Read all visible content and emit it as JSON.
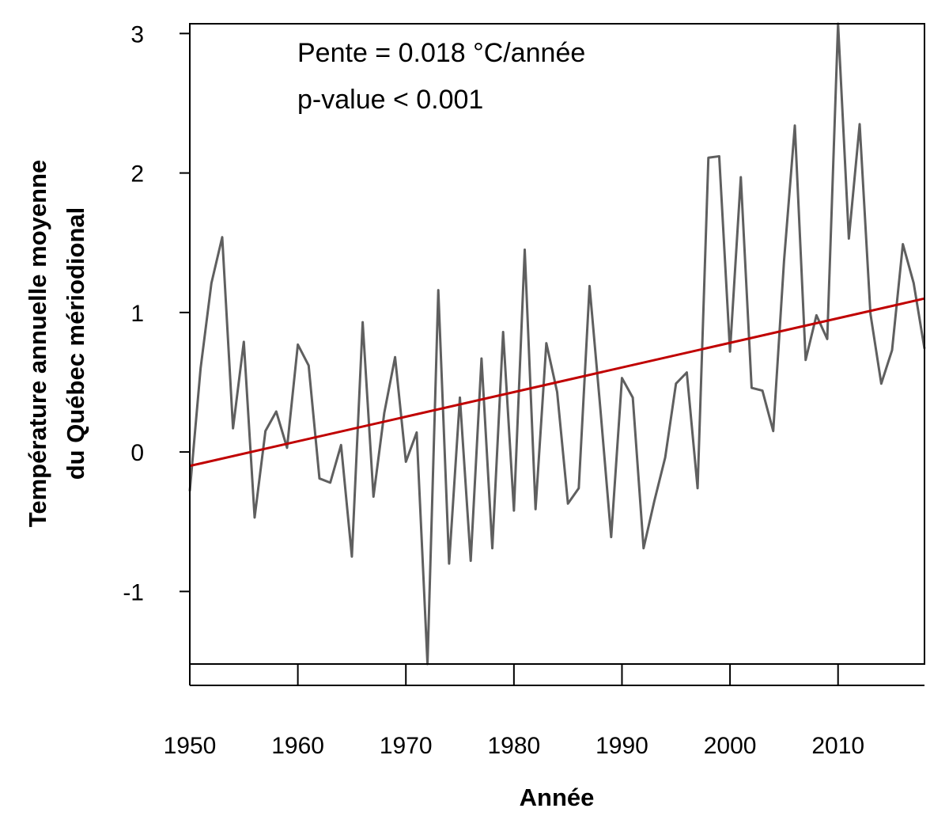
{
  "chart_data": {
    "type": "line",
    "xlabel": "Année",
    "ylabel_lines": [
      "Température annuelle moyenne",
      "du Québec mériodional"
    ],
    "annotations": [
      "Pente = 0.018 °C/année",
      "p-value < 0.001"
    ],
    "xlim": [
      1950,
      2018
    ],
    "ylim": [
      -1.52,
      3.07
    ],
    "x_ticks": [
      1950,
      1960,
      1970,
      1980,
      1990,
      2000,
      2010
    ],
    "y_ticks": [
      -1,
      0,
      1,
      2,
      3
    ],
    "grid": false,
    "series": [
      {
        "color": "#5f5f5f",
        "x": [
          1950,
          1951,
          1952,
          1953,
          1954,
          1955,
          1956,
          1957,
          1958,
          1959,
          1960,
          1961,
          1962,
          1963,
          1964,
          1965,
          1966,
          1967,
          1968,
          1969,
          1970,
          1971,
          1972,
          1973,
          1974,
          1975,
          1976,
          1977,
          1978,
          1979,
          1980,
          1981,
          1982,
          1983,
          1984,
          1985,
          1986,
          1987,
          1988,
          1989,
          1990,
          1991,
          1992,
          1993,
          1994,
          1995,
          1996,
          1997,
          1998,
          1999,
          2000,
          2001,
          2002,
          2003,
          2004,
          2005,
          2006,
          2007,
          2008,
          2009,
          2010,
          2011,
          2012,
          2013,
          2014,
          2015,
          2016,
          2017,
          2018
        ],
        "y": [
          -0.28,
          0.6,
          1.21,
          1.54,
          0.17,
          0.79,
          -0.47,
          0.15,
          0.29,
          0.03,
          0.77,
          0.62,
          -0.19,
          -0.22,
          0.05,
          -0.75,
          0.93,
          -0.32,
          0.28,
          0.68,
          -0.07,
          0.14,
          -1.55,
          1.16,
          -0.8,
          0.39,
          -0.78,
          0.67,
          -0.69,
          0.86,
          -0.42,
          1.45,
          -0.41,
          0.78,
          0.43,
          -0.37,
          -0.26,
          1.19,
          0.31,
          -0.61,
          0.53,
          0.39,
          -0.69,
          -0.35,
          -0.04,
          0.49,
          0.57,
          -0.26,
          2.11,
          2.12,
          0.72,
          1.97,
          0.46,
          0.44,
          0.15,
          1.37,
          2.34,
          0.66,
          0.98,
          0.81,
          3.07,
          1.53,
          2.35,
          0.99,
          0.49,
          0.73,
          1.49,
          1.21,
          0.74
        ]
      },
      {
        "color": "#c00000",
        "type": "trend",
        "x": [
          1950,
          2018
        ],
        "y": [
          -0.1,
          1.1
        ]
      }
    ]
  }
}
